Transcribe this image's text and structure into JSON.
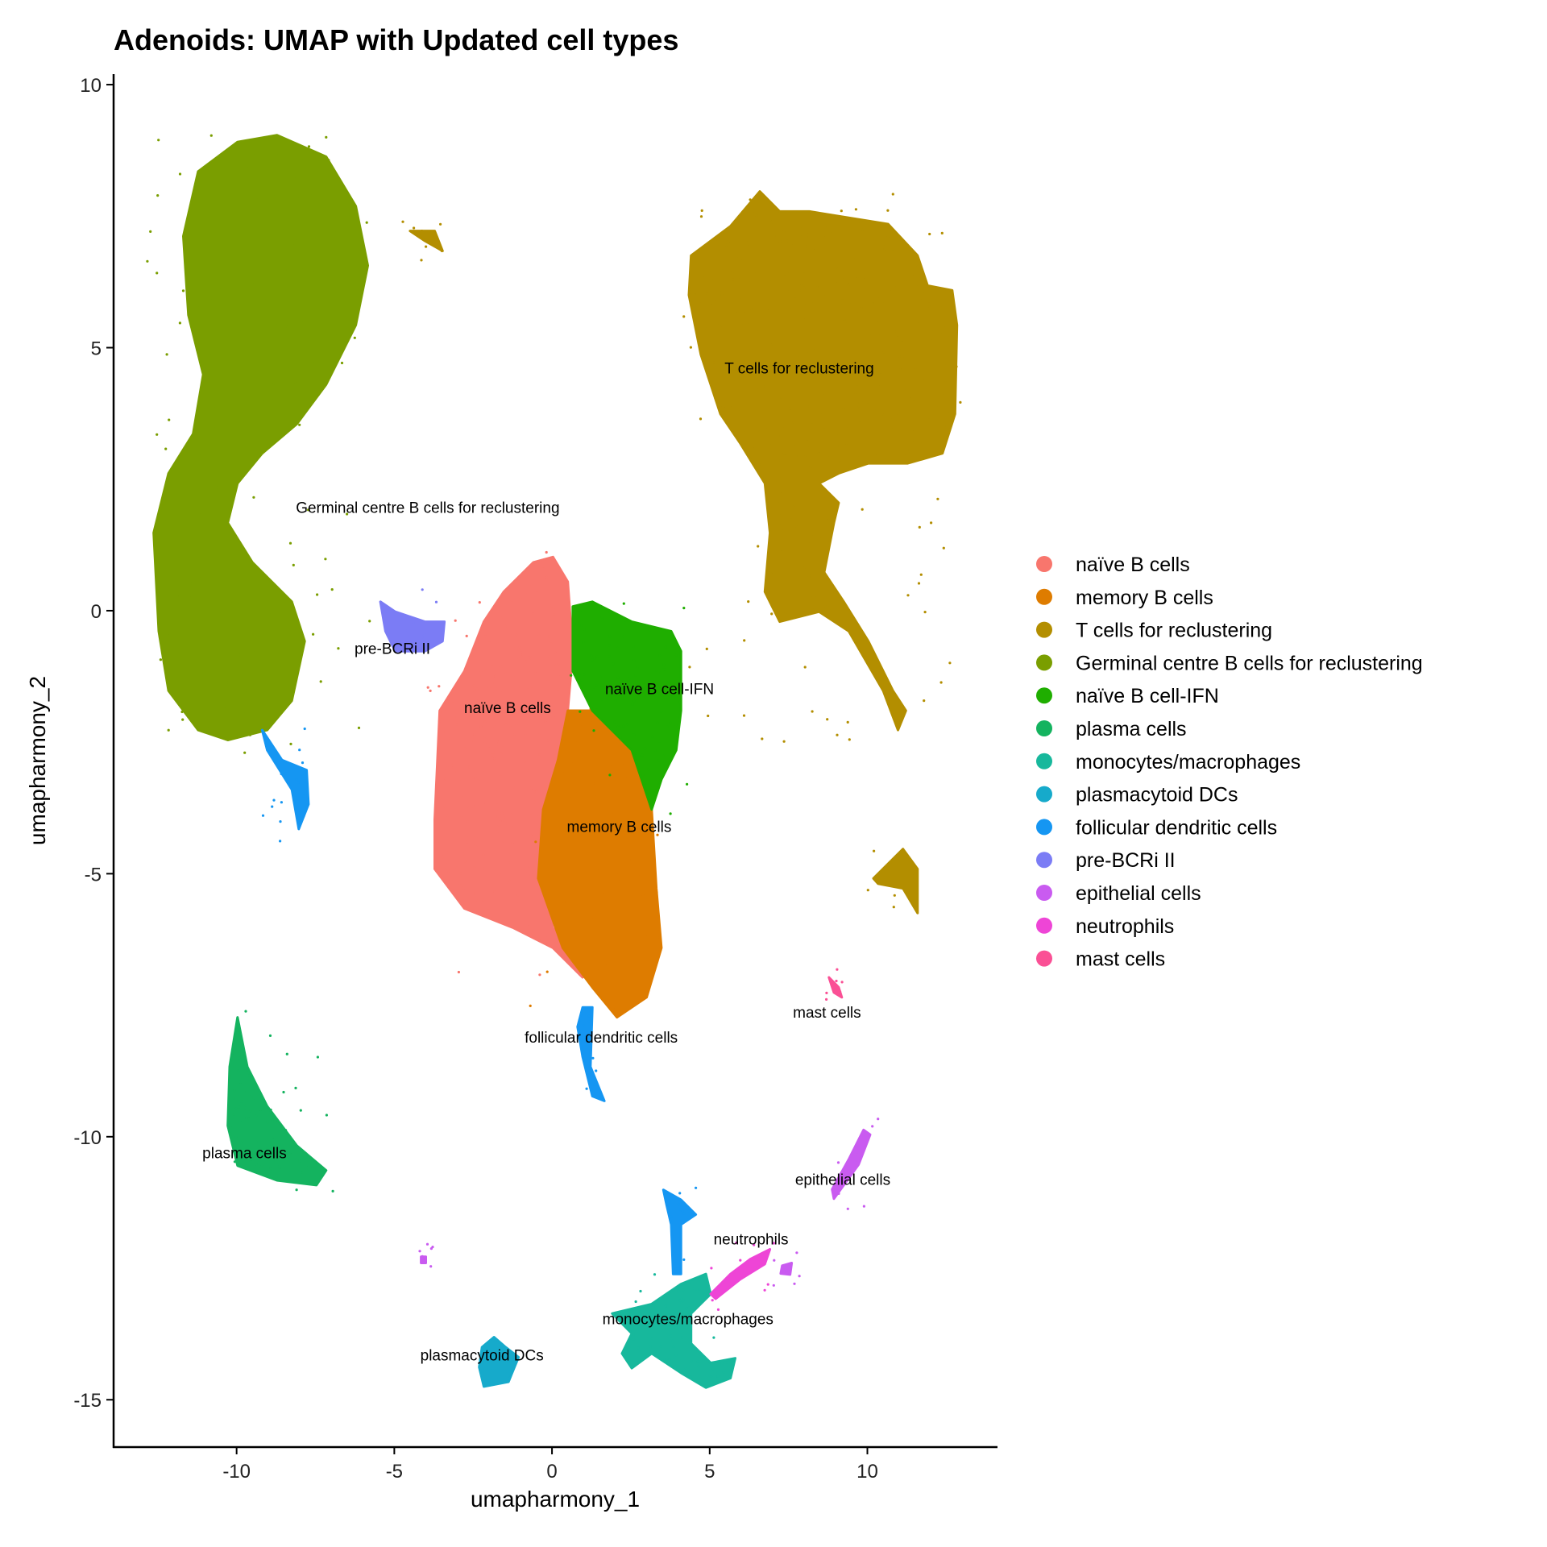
{
  "chart_data": {
    "type": "scatter",
    "title": "Adenoids: UMAP with Updated cell types",
    "xlabel": "umapharmony_1",
    "ylabel": "umapharmony_2",
    "xlim": [
      -13.9,
      14.1
    ],
    "ylim": [
      -15.9,
      10.2
    ],
    "xticks": [
      -10,
      -5,
      0,
      5,
      10
    ],
    "yticks": [
      -15,
      -10,
      -5,
      0,
      5,
      10
    ],
    "grid": false,
    "legend_position": "right",
    "series": [
      {
        "name": "naïve B cells",
        "color": "#F8766D",
        "label_at": [
          -1.41,
          -1.84
        ],
        "regions": [
          [
            [
              -3.72,
              -3.97
            ],
            [
              -3.56,
              -1.9
            ],
            [
              -2.78,
              -1.15
            ],
            [
              -2.16,
              -0.21
            ],
            [
              -1.53,
              0.36
            ],
            [
              -0.59,
              0.92
            ],
            [
              0.03,
              1.02
            ],
            [
              0.5,
              0.55
            ],
            [
              0.66,
              -0.77
            ],
            [
              0.5,
              -1.9
            ],
            [
              0.03,
              -3.4
            ],
            [
              -0.44,
              -4.91
            ],
            [
              0.03,
              -6.03
            ],
            [
              0.97,
              -6.97
            ],
            [
              0.03,
              -6.41
            ],
            [
              -1.22,
              -6.03
            ],
            [
              -2.78,
              -5.66
            ],
            [
              -3.72,
              -4.91
            ]
          ]
        ]
      },
      {
        "name": "memory B cells",
        "color": "#DE7C00",
        "label_at": [
          2.13,
          -4.1
        ],
        "regions": [
          [
            [
              0.5,
              -1.9
            ],
            [
              1.28,
              -1.9
            ],
            [
              2.53,
              -2.65
            ],
            [
              3.16,
              -3.78
            ],
            [
              3.31,
              -5.28
            ],
            [
              3.47,
              -6.41
            ],
            [
              3.0,
              -7.35
            ],
            [
              2.06,
              -7.73
            ],
            [
              1.28,
              -7.16
            ],
            [
              0.34,
              -6.41
            ],
            [
              -0.44,
              -5.09
            ],
            [
              -0.28,
              -3.78
            ],
            [
              0.19,
              -2.84
            ]
          ]
        ]
      },
      {
        "name": "T cells for reclustering",
        "color": "#B38E00",
        "label_at": [
          7.84,
          4.62
        ],
        "regions": [
          [
            [
              4.41,
              6.75
            ],
            [
              5.66,
              7.31
            ],
            [
              6.59,
              7.97
            ],
            [
              7.22,
              7.59
            ],
            [
              8.16,
              7.59
            ],
            [
              10.66,
              7.35
            ],
            [
              11.59,
              6.75
            ],
            [
              11.91,
              6.18
            ],
            [
              12.69,
              6.09
            ],
            [
              12.84,
              5.43
            ],
            [
              12.78,
              3.74
            ],
            [
              12.38,
              2.99
            ],
            [
              11.28,
              2.8
            ],
            [
              10.03,
              2.8
            ],
            [
              9.09,
              2.61
            ],
            [
              8.47,
              2.42
            ],
            [
              9.09,
              2.05
            ],
            [
              8.94,
              1.67
            ],
            [
              8.63,
              0.73
            ],
            [
              9.25,
              0.17
            ],
            [
              10.03,
              -0.58
            ],
            [
              10.81,
              -1.52
            ],
            [
              11.22,
              -1.9
            ],
            [
              10.97,
              -2.27
            ],
            [
              10.5,
              -1.52
            ],
            [
              9.41,
              -0.39
            ],
            [
              8.47,
              -0.02
            ],
            [
              7.22,
              -0.21
            ],
            [
              6.75,
              0.36
            ],
            [
              6.91,
              1.48
            ],
            [
              6.75,
              2.42
            ],
            [
              5.97,
              3.18
            ],
            [
              5.34,
              3.74
            ],
            [
              4.72,
              4.87
            ],
            [
              4.34,
              6.0
            ]
          ],
          [
            [
              10.19,
              -5.09
            ],
            [
              11.13,
              -4.53
            ],
            [
              11.59,
              -4.91
            ],
            [
              11.59,
              -5.75
            ],
            [
              11.13,
              -5.28
            ],
            [
              10.34,
              -5.19
            ]
          ],
          [
            [
              -4.5,
              7.22
            ],
            [
              -3.72,
              7.22
            ],
            [
              -3.47,
              6.84
            ],
            [
              -4.03,
              7.03
            ]
          ]
        ]
      },
      {
        "name": "Germinal centre B cells for reclustering",
        "color": "#7A9E00",
        "label_at": [
          -3.94,
          1.97
        ],
        "regions": [
          [
            [
              -11.69,
              7.12
            ],
            [
              -11.22,
              8.35
            ],
            [
              -9.97,
              8.91
            ],
            [
              -8.72,
              9.04
            ],
            [
              -7.16,
              8.63
            ],
            [
              -6.22,
              7.69
            ],
            [
              -5.84,
              6.56
            ],
            [
              -6.22,
              5.43
            ],
            [
              -7.16,
              4.3
            ],
            [
              -8.09,
              3.55
            ],
            [
              -9.19,
              2.99
            ],
            [
              -9.97,
              2.42
            ],
            [
              -10.28,
              1.67
            ],
            [
              -9.5,
              0.92
            ],
            [
              -8.25,
              0.17
            ],
            [
              -7.84,
              -0.58
            ],
            [
              -8.25,
              -1.71
            ],
            [
              -9.03,
              -2.27
            ],
            [
              -10.28,
              -2.46
            ],
            [
              -11.22,
              -2.27
            ],
            [
              -12.16,
              -1.52
            ],
            [
              -12.47,
              -0.39
            ],
            [
              -12.63,
              1.48
            ],
            [
              -12.16,
              2.61
            ],
            [
              -11.38,
              3.36
            ],
            [
              -11.06,
              4.49
            ],
            [
              -11.53,
              5.62
            ]
          ]
        ]
      },
      {
        "name": "naïve B cell-IFN",
        "color": "#1FAE00",
        "label_at": [
          3.41,
          -1.48
        ],
        "regions": [
          [
            [
              0.66,
              0.08
            ],
            [
              1.28,
              0.17
            ],
            [
              2.53,
              -0.21
            ],
            [
              3.78,
              -0.39
            ],
            [
              4.09,
              -0.77
            ],
            [
              4.09,
              -1.9
            ],
            [
              3.94,
              -2.65
            ],
            [
              3.47,
              -3.21
            ],
            [
              3.16,
              -3.78
            ],
            [
              2.53,
              -2.65
            ],
            [
              1.28,
              -1.9
            ],
            [
              0.66,
              -1.15
            ]
          ]
        ]
      },
      {
        "name": "plasma cells",
        "color": "#14B35F",
        "label_at": [
          -9.75,
          -10.3
        ],
        "regions": [
          [
            [
              -9.97,
              -7.73
            ],
            [
              -9.66,
              -8.67
            ],
            [
              -9.03,
              -9.42
            ],
            [
              -8.09,
              -10.17
            ],
            [
              -7.16,
              -10.64
            ],
            [
              -7.47,
              -10.92
            ],
            [
              -8.72,
              -10.83
            ],
            [
              -9.97,
              -10.55
            ],
            [
              -10.28,
              -9.79
            ],
            [
              -10.22,
              -8.67
            ]
          ]
        ]
      },
      {
        "name": "monocytes/macrophages",
        "color": "#17B89C",
        "label_at": [
          4.31,
          -13.46
        ],
        "regions": [
          [
            [
              1.91,
              -13.36
            ],
            [
              3.16,
              -13.18
            ],
            [
              4.09,
              -12.8
            ],
            [
              4.88,
              -12.61
            ],
            [
              5.03,
              -12.99
            ],
            [
              4.41,
              -13.36
            ],
            [
              4.41,
              -13.93
            ],
            [
              5.03,
              -14.3
            ],
            [
              5.81,
              -14.21
            ],
            [
              5.66,
              -14.59
            ],
            [
              4.88,
              -14.77
            ],
            [
              4.09,
              -14.49
            ],
            [
              3.16,
              -14.12
            ],
            [
              2.53,
              -14.4
            ],
            [
              2.22,
              -14.12
            ],
            [
              2.53,
              -13.74
            ]
          ]
        ]
      },
      {
        "name": "plasmacytoid DCs",
        "color": "#16AACB",
        "label_at": [
          -2.22,
          -14.15
        ],
        "regions": [
          [
            [
              -2.22,
              -14.0
            ],
            [
              -1.84,
              -13.81
            ],
            [
              -1.47,
              -14.0
            ],
            [
              -1.06,
              -14.19
            ],
            [
              -1.38,
              -14.66
            ],
            [
              -2.16,
              -14.75
            ],
            [
              -2.31,
              -14.38
            ]
          ]
        ]
      },
      {
        "name": "follicular dendritic cells",
        "color": "#1596F2",
        "label_at": [
          1.56,
          -8.1
        ],
        "regions": [
          [
            [
              -9.19,
              -2.27
            ],
            [
              -8.56,
              -2.84
            ],
            [
              -7.78,
              -3.03
            ],
            [
              -7.72,
              -3.68
            ],
            [
              -8.03,
              -4.15
            ],
            [
              -8.25,
              -3.4
            ],
            [
              -9.03,
              -2.65
            ]
          ],
          [
            [
              0.97,
              -7.54
            ],
            [
              1.28,
              -7.54
            ],
            [
              1.22,
              -8.67
            ],
            [
              1.66,
              -9.32
            ],
            [
              1.28,
              -9.23
            ],
            [
              0.97,
              -8.48
            ],
            [
              0.81,
              -7.91
            ]
          ],
          [
            [
              3.53,
              -11.01
            ],
            [
              4.09,
              -11.2
            ],
            [
              4.56,
              -11.48
            ],
            [
              4.09,
              -11.67
            ],
            [
              4.09,
              -12.61
            ],
            [
              3.84,
              -12.61
            ],
            [
              3.78,
              -11.67
            ],
            [
              3.63,
              -11.29
            ]
          ]
        ]
      },
      {
        "name": "pre-BCRi II",
        "color": "#7B7CF5",
        "label_at": [
          -5.06,
          -0.71
        ],
        "regions": [
          [
            [
              -5.44,
              0.17
            ],
            [
              -4.97,
              -0.02
            ],
            [
              -4.03,
              -0.21
            ],
            [
              -3.41,
              -0.21
            ],
            [
              -3.47,
              -0.58
            ],
            [
              -4.03,
              -0.77
            ],
            [
              -4.97,
              -0.77
            ],
            [
              -5.28,
              -0.39
            ]
          ]
        ]
      },
      {
        "name": "epithelial cells",
        "color": "#C95BF0",
        "label_at": [
          9.22,
          -10.81
        ],
        "regions": [
          [
            [
              9.88,
              -9.87
            ],
            [
              10.09,
              -9.96
            ],
            [
              9.72,
              -10.53
            ],
            [
              8.94,
              -11.18
            ],
            [
              8.88,
              -11.0
            ],
            [
              9.41,
              -10.43
            ]
          ],
          [
            [
              7.3,
              -12.45
            ],
            [
              7.6,
              -12.4
            ],
            [
              7.55,
              -12.62
            ],
            [
              7.25,
              -12.6
            ]
          ],
          [
            [
              -4.15,
              -12.28
            ],
            [
              -4.0,
              -12.28
            ],
            [
              -4.0,
              -12.4
            ],
            [
              -4.15,
              -12.4
            ]
          ]
        ]
      },
      {
        "name": "neutrophils",
        "color": "#EE45D6",
        "label_at": [
          6.31,
          -11.94
        ],
        "regions": [
          [
            [
              5.03,
              -12.99
            ],
            [
              5.66,
              -12.61
            ],
            [
              6.28,
              -12.33
            ],
            [
              6.91,
              -12.14
            ],
            [
              6.75,
              -12.42
            ],
            [
              5.97,
              -12.71
            ],
            [
              5.19,
              -13.08
            ]
          ]
        ]
      },
      {
        "name": "mast cells",
        "color": "#FA5095",
        "label_at": [
          8.72,
          -7.63
        ],
        "regions": [
          [
            [
              8.78,
              -6.97
            ],
            [
              9.09,
              -7.16
            ],
            [
              9.19,
              -7.35
            ],
            [
              8.94,
              -7.26
            ]
          ]
        ]
      }
    ]
  }
}
